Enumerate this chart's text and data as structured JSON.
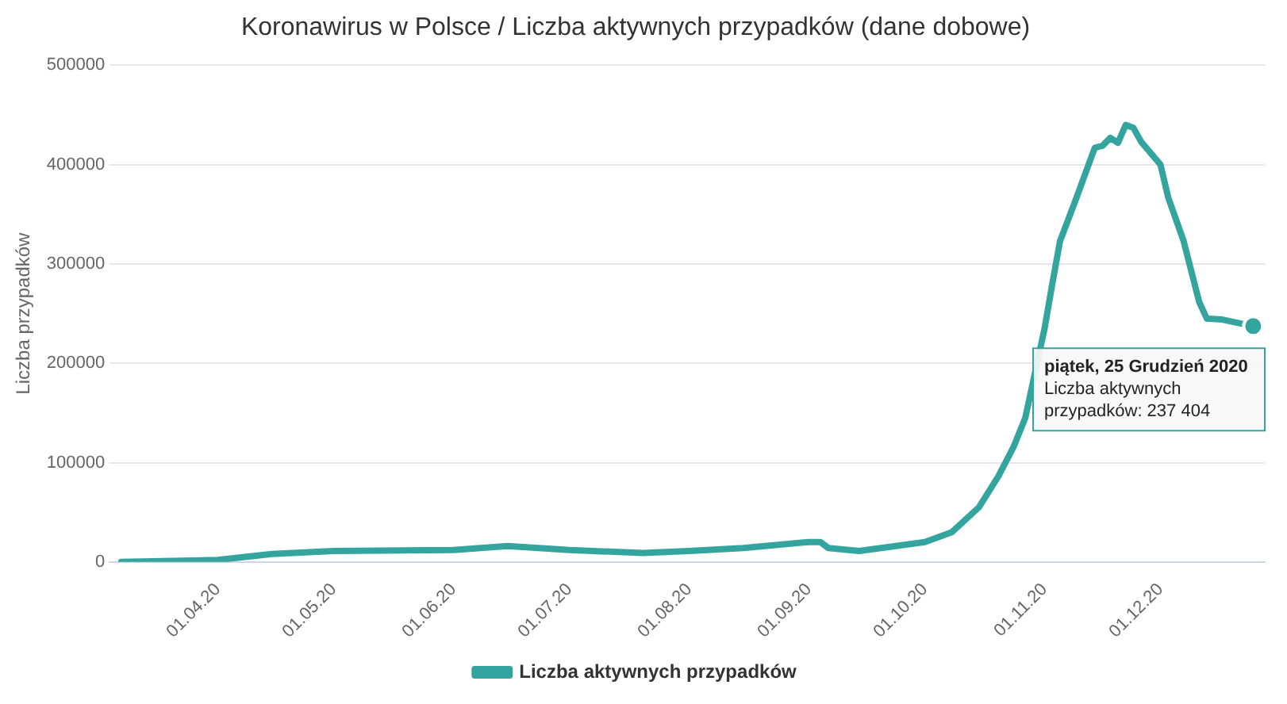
{
  "chart_data": {
    "type": "line",
    "title": "Koronawirus w Polsce / Liczba aktywnych przypadków (dane dobowe)",
    "ylabel": "Liczba przypadków",
    "x": [
      "2020-03-07",
      "2020-04-01",
      "2020-04-15",
      "2020-05-01",
      "2020-06-01",
      "2020-06-15",
      "2020-07-01",
      "2020-07-20",
      "2020-08-01",
      "2020-08-15",
      "2020-09-01",
      "2020-09-04",
      "2020-09-06",
      "2020-09-14",
      "2020-10-01",
      "2020-10-08",
      "2020-10-15",
      "2020-10-20",
      "2020-10-24",
      "2020-10-27",
      "2020-11-01",
      "2020-11-03",
      "2020-11-05",
      "2020-11-09",
      "2020-11-14",
      "2020-11-16",
      "2020-11-18",
      "2020-11-20",
      "2020-11-22",
      "2020-11-24",
      "2020-11-26",
      "2020-12-01",
      "2020-12-03",
      "2020-12-07",
      "2020-12-11",
      "2020-12-13",
      "2020-12-17",
      "2020-12-25"
    ],
    "series": [
      {
        "name": "Liczba aktywnych przypadków",
        "color": "#33a59e",
        "values": [
          0,
          2000,
          8000,
          11000,
          12000,
          16000,
          12000,
          9000,
          11000,
          14000,
          20000,
          20000,
          14000,
          11000,
          20000,
          30000,
          55000,
          86000,
          116000,
          145000,
          235000,
          280000,
          323000,
          364000,
          417000,
          419000,
          427000,
          422000,
          440000,
          437000,
          423000,
          400000,
          367000,
          323000,
          262000,
          245000,
          244000,
          237404
        ]
      }
    ],
    "xlim": [
      "2020-03-04",
      "2020-12-28"
    ],
    "xticks": [
      {
        "value": "2020-04-01",
        "label": "01.04.20"
      },
      {
        "value": "2020-05-01",
        "label": "01.05.20"
      },
      {
        "value": "2020-06-01",
        "label": "01.06.20"
      },
      {
        "value": "2020-07-01",
        "label": "01.07.20"
      },
      {
        "value": "2020-08-01",
        "label": "01.08.20"
      },
      {
        "value": "2020-09-01",
        "label": "01.09.20"
      },
      {
        "value": "2020-10-01",
        "label": "01.10.20"
      },
      {
        "value": "2020-11-01",
        "label": "01.11.20"
      },
      {
        "value": "2020-12-01",
        "label": "01.12.20"
      }
    ],
    "ylim": [
      0,
      500000
    ],
    "yticks": [
      0,
      100000,
      200000,
      300000,
      400000,
      500000
    ],
    "grid": "y",
    "legend": "bottom",
    "marker": "none",
    "line_style": "solid",
    "annotations": [
      {
        "text": "piątek, 25 Grudzień 2020\nLiczba aktywnych przypadków: 237 404",
        "x": "2020-12-25",
        "y": 237404
      }
    ]
  }
}
